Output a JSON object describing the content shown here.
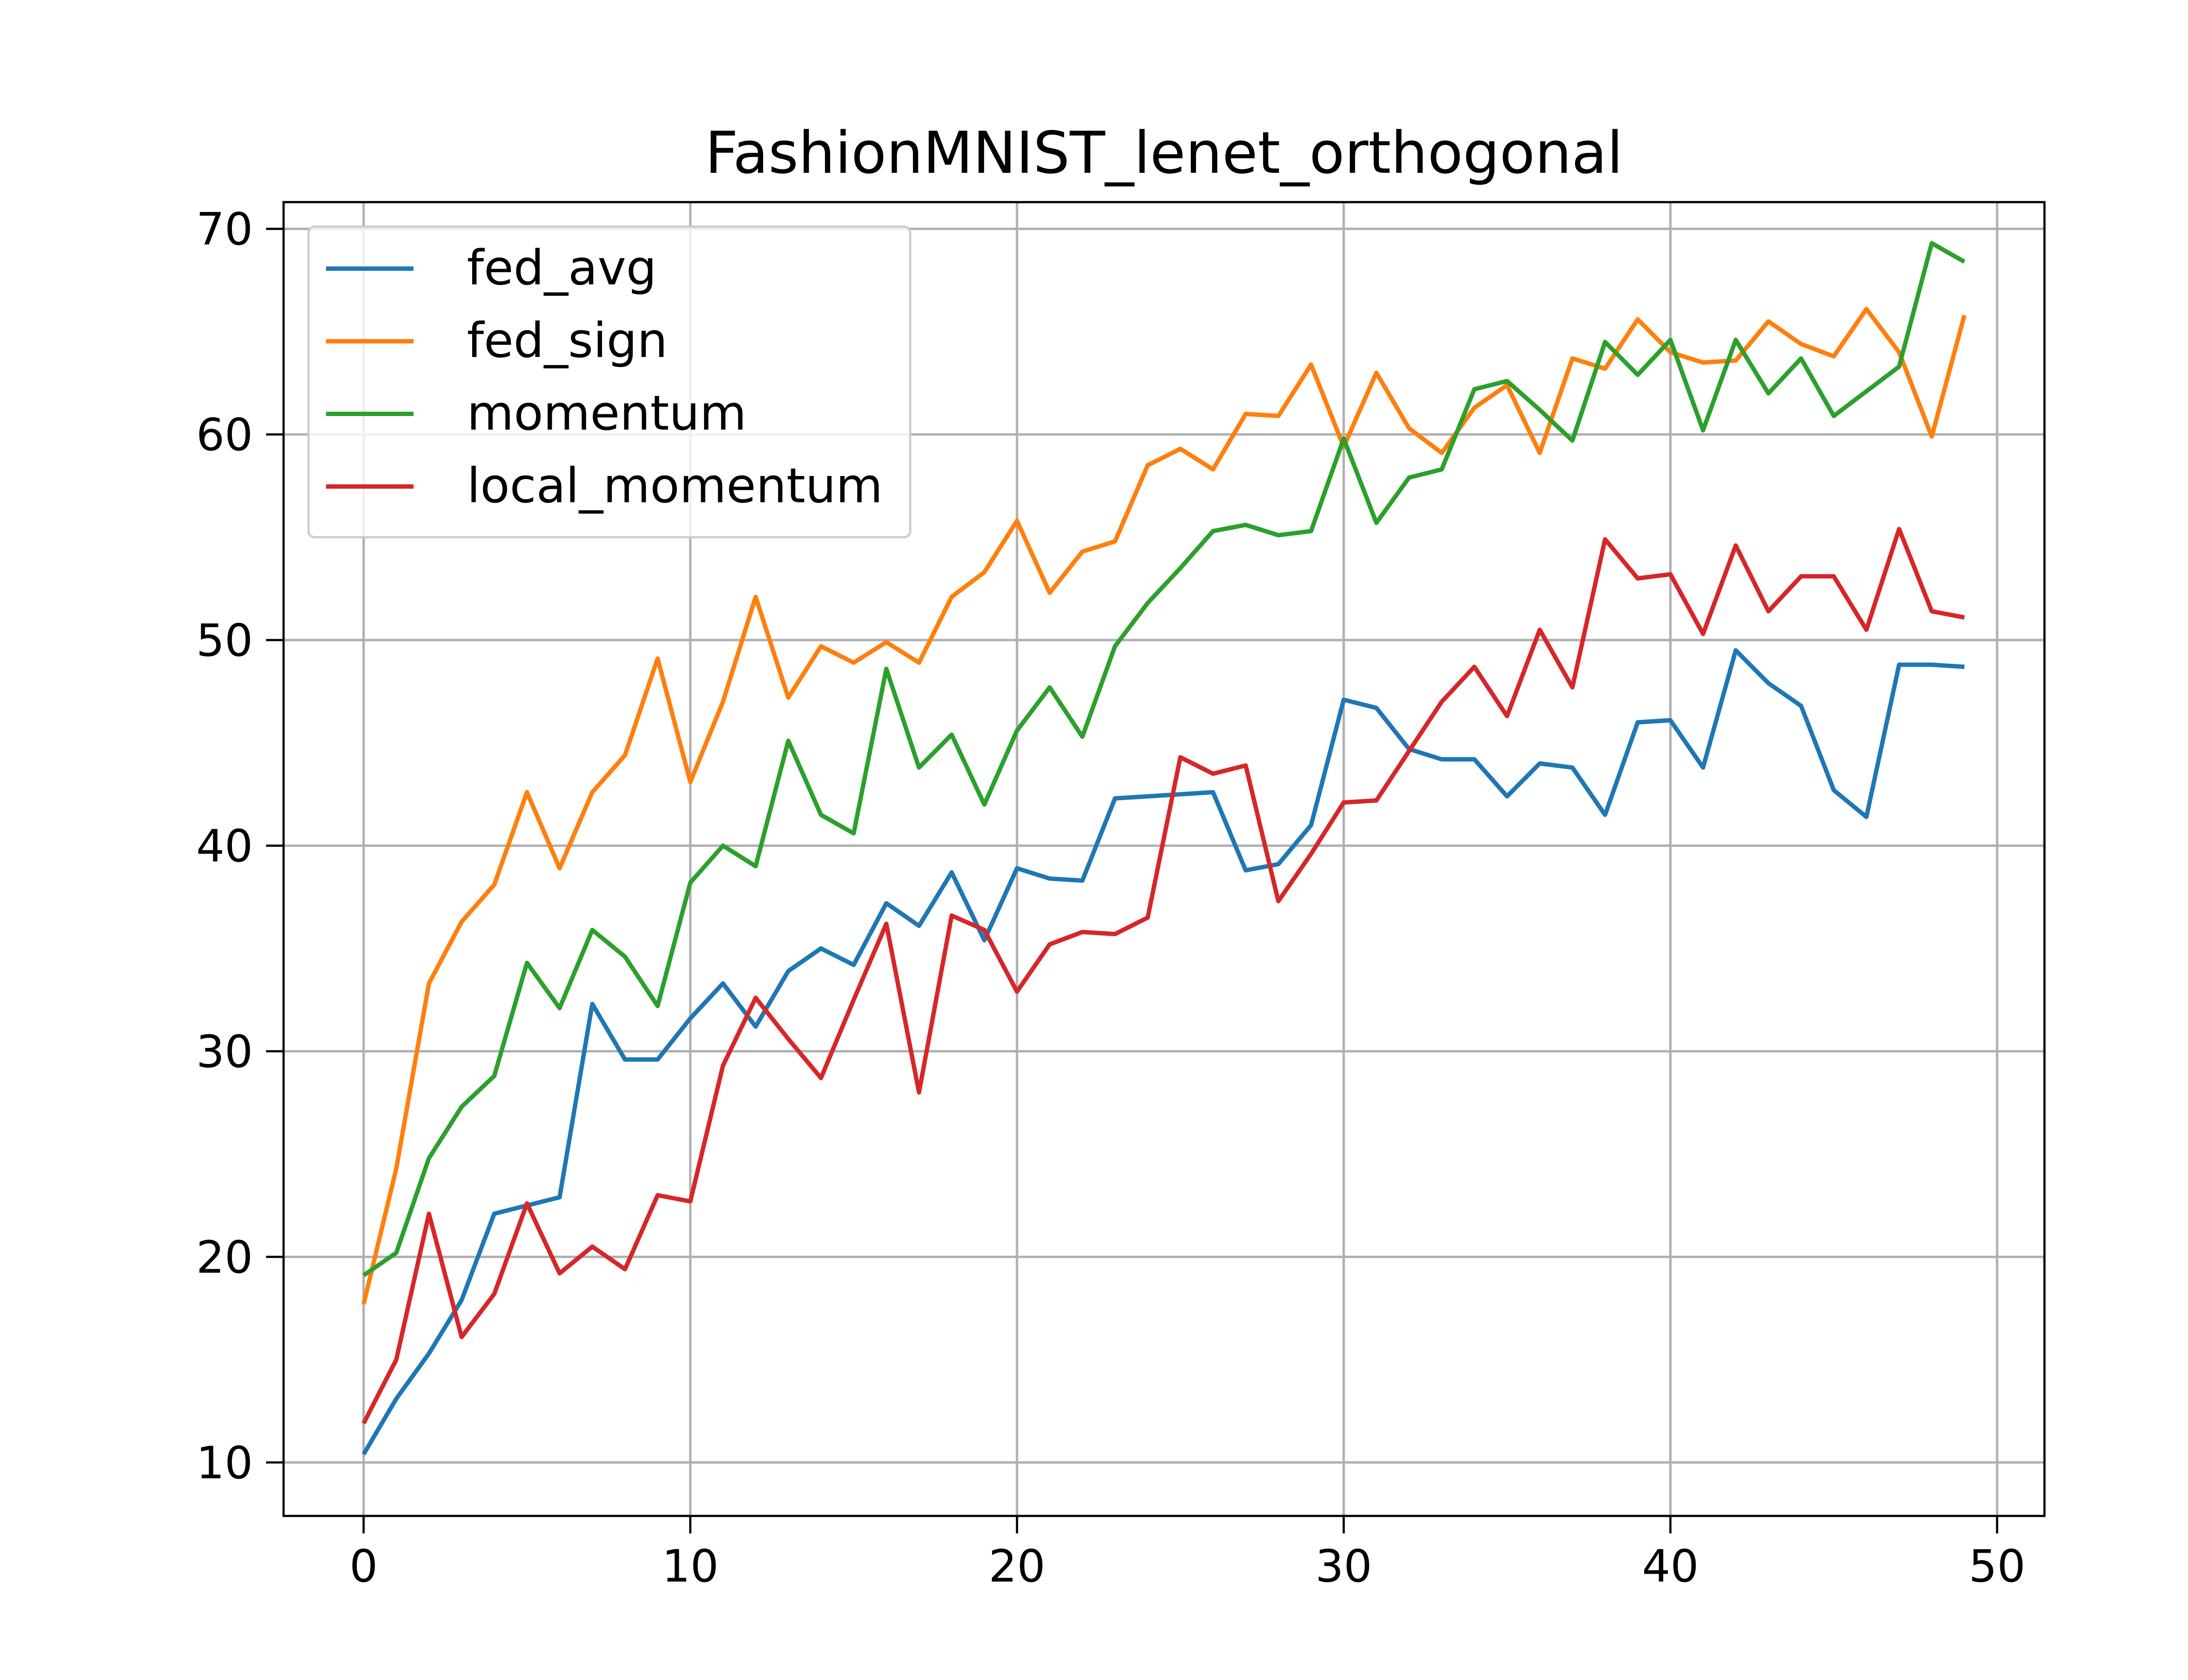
{
  "chart_data": {
    "type": "line",
    "title": "FashionMNIST_lenet_orthogonal",
    "xlabel": "",
    "ylabel": "",
    "xlim": [
      -2.45,
      51.45
    ],
    "ylim": [
      7.4,
      71.3
    ],
    "xticks": [
      0,
      10,
      20,
      30,
      40,
      50
    ],
    "yticks": [
      10,
      20,
      30,
      40,
      50,
      60,
      70
    ],
    "grid": true,
    "legend_position": "upper-left",
    "x": [
      0,
      1,
      2,
      3,
      4,
      5,
      6,
      7,
      8,
      9,
      10,
      11,
      12,
      13,
      14,
      15,
      16,
      17,
      18,
      19,
      20,
      21,
      22,
      23,
      24,
      25,
      26,
      27,
      28,
      29,
      30,
      31,
      32,
      33,
      34,
      35,
      36,
      37,
      38,
      39,
      40,
      41,
      42,
      43,
      44,
      45,
      46,
      47,
      48,
      49
    ],
    "series": [
      {
        "name": "fed_avg",
        "color": "#1f77b4",
        "values": [
          10.4,
          13.1,
          15.3,
          17.9,
          22.1,
          22.5,
          22.9,
          32.3,
          29.6,
          29.6,
          31.6,
          33.3,
          31.2,
          33.9,
          35.0,
          34.2,
          37.2,
          36.1,
          38.7,
          35.4,
          38.9,
          38.4,
          38.3,
          42.3,
          42.4,
          42.5,
          42.6,
          38.8,
          39.1,
          41.0,
          47.1,
          46.7,
          44.7,
          44.2,
          44.2,
          42.4,
          44.0,
          43.8,
          41.5,
          46.0,
          46.1,
          43.8,
          49.5,
          47.9,
          46.8,
          42.7,
          41.4,
          48.8,
          48.8,
          48.7
        ]
      },
      {
        "name": "fed_sign",
        "color": "#ff7f0e",
        "values": [
          17.7,
          24.3,
          33.3,
          36.3,
          38.1,
          42.6,
          38.9,
          42.6,
          44.4,
          49.1,
          43.1,
          47.0,
          52.1,
          47.2,
          49.7,
          48.9,
          49.9,
          48.9,
          52.1,
          53.3,
          55.8,
          52.3,
          54.3,
          54.8,
          58.5,
          59.3,
          58.3,
          61.0,
          60.9,
          63.4,
          59.4,
          63.0,
          60.3,
          59.1,
          61.3,
          62.4,
          59.1,
          63.7,
          63.2,
          65.6,
          64.0,
          63.5,
          63.6,
          65.5,
          64.4,
          63.8,
          66.1,
          64.0,
          59.9,
          65.8
        ]
      },
      {
        "name": "momentum",
        "color": "#2ca02c",
        "values": [
          19.1,
          20.2,
          24.8,
          27.3,
          28.8,
          34.3,
          32.1,
          35.9,
          34.6,
          32.2,
          38.2,
          40.0,
          39.0,
          45.1,
          41.5,
          40.6,
          48.6,
          43.8,
          45.4,
          42.0,
          45.6,
          47.7,
          45.3,
          49.7,
          51.8,
          53.5,
          55.3,
          55.6,
          55.1,
          55.3,
          59.8,
          55.7,
          57.9,
          58.3,
          62.2,
          62.6,
          61.2,
          59.7,
          64.5,
          62.9,
          64.6,
          60.2,
          64.6,
          62.0,
          63.7,
          60.9,
          62.1,
          63.3,
          69.3,
          68.4
        ]
      },
      {
        "name": "local_momentum",
        "color": "#d62728",
        "values": [
          11.9,
          15.0,
          22.1,
          16.1,
          18.2,
          22.6,
          19.2,
          20.5,
          19.4,
          23.0,
          22.7,
          29.3,
          32.6,
          30.6,
          28.7,
          32.5,
          36.2,
          28.0,
          36.6,
          35.9,
          32.9,
          35.2,
          35.8,
          35.7,
          36.5,
          44.3,
          43.5,
          43.9,
          37.3,
          39.6,
          42.1,
          42.2,
          44.6,
          47.0,
          48.7,
          46.3,
          50.5,
          47.7,
          54.9,
          53.0,
          53.2,
          50.3,
          54.6,
          51.4,
          53.1,
          53.1,
          50.5,
          55.4,
          51.4,
          51.1
        ]
      }
    ]
  }
}
